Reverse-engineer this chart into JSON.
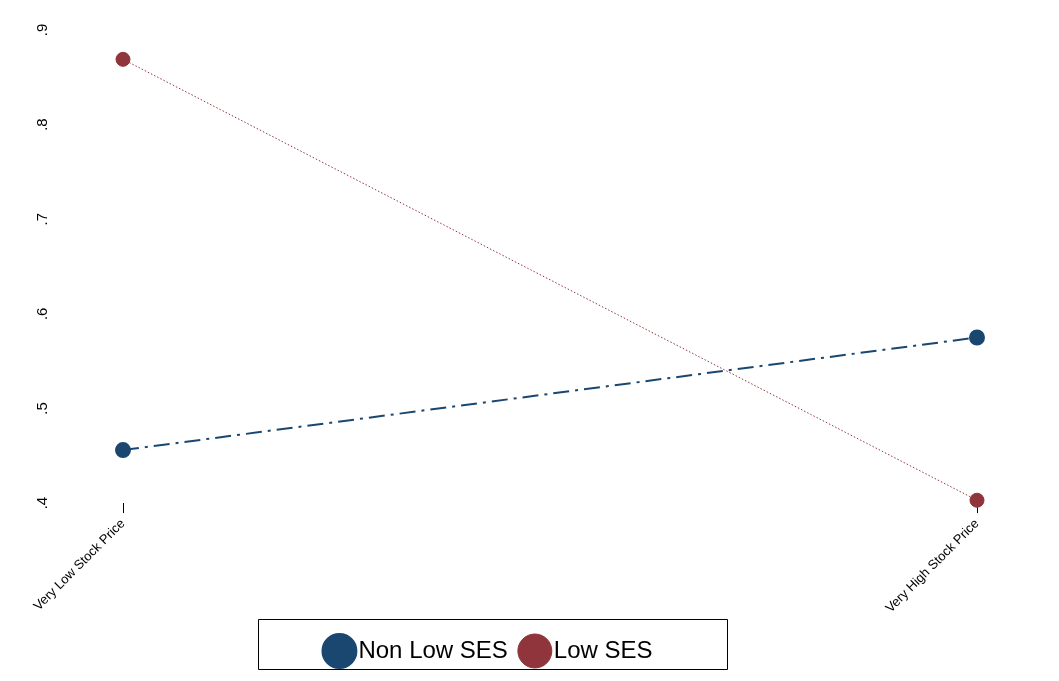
{
  "chart_data": {
    "type": "line",
    "categories": [
      "Very Low Stock Price",
      "Very High Stock Price"
    ],
    "series": [
      {
        "name": "Non Low SES",
        "color": "#1a476f",
        "values": [
          0.456,
          0.575
        ],
        "line_style": "dashed"
      },
      {
        "name": "Low SES",
        "color": "#90353b",
        "values": [
          0.869,
          0.403
        ],
        "line_style": "dotted"
      }
    ],
    "ylim": [
      0.4,
      0.9
    ],
    "yticks": [
      {
        "value": 0.4,
        "label": ".4"
      },
      {
        "value": 0.5,
        "label": ".5"
      },
      {
        "value": 0.6,
        "label": ".6"
      },
      {
        "value": 0.7,
        "label": ".7"
      },
      {
        "value": 0.8,
        "label": ".8"
      },
      {
        "value": 0.9,
        "label": ".9"
      }
    ],
    "marker": "circle",
    "grid": false,
    "legend": "bottom"
  }
}
